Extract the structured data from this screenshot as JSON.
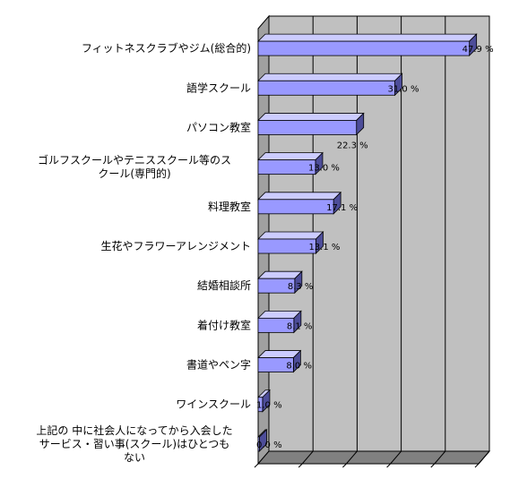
{
  "chart_data": {
    "type": "bar",
    "orientation": "horizontal",
    "three_d": true,
    "categories": [
      [
        "フィットネスクラブやジム(総合的)"
      ],
      [
        "語学スクール"
      ],
      [
        "パソコン教室"
      ],
      [
        "ゴルフスクールやテニススクール等のス",
        "クール(専門的)"
      ],
      [
        "料理教室"
      ],
      [
        "生花やフラワーアレンジメント"
      ],
      [
        "結婚相談所"
      ],
      [
        "着付け教室"
      ],
      [
        "書道やペン字"
      ],
      [
        "ワインスクール"
      ],
      [
        "上記の 中に社会人になってから入会した",
        "サービス・習い事(スクール)はひとつも",
        "ない"
      ]
    ],
    "values": [
      47.9,
      31.0,
      22.3,
      13.0,
      17.1,
      13.1,
      8.3,
      8.1,
      8.0,
      1.0,
      0.0
    ],
    "data_labels": [
      "47.9 %",
      "31.0 %",
      "22.3 %",
      "13.0 %",
      "17.1 %",
      "13.1 %",
      "8.3 %",
      "8.1 %",
      "8.0 %",
      "1.0 %",
      "0.0 %"
    ],
    "xlim": [
      0,
      50
    ],
    "grid": true,
    "colors": {
      "bar_front": "#9999ff",
      "bar_top": "#ccccff",
      "bar_side": "#4d4d99",
      "plot_wall": "#c0c0c0",
      "plot_floor": "#808080",
      "grid_line": "#000000"
    }
  }
}
